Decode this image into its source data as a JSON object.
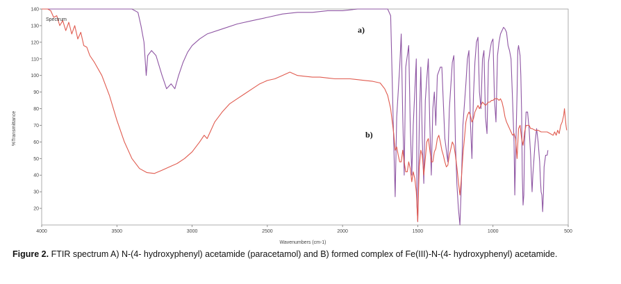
{
  "figure_label": "Figure 2.",
  "caption": "FTIR spectrum A) N-(4- hydroxyphenyl) acetamide (paracetamol) and B) formed complex of Fe(III)-N-(4- hydroxyphenyl) acetamide.",
  "chart_data": {
    "type": "line",
    "xlabel": "Wavenumbers (cm-1)",
    "ylabel": "%Transmittance",
    "xlim": [
      4000,
      500
    ],
    "x_reversed": true,
    "ylim": [
      10,
      140
    ],
    "x_ticks": [
      4000,
      3500,
      3000,
      2500,
      2000,
      1500,
      1000,
      500
    ],
    "y_ticks": [
      20,
      30,
      40,
      50,
      60,
      70,
      80,
      90,
      100,
      110,
      120,
      130,
      140
    ],
    "grid": false,
    "annotation": "Spectrum",
    "series": [
      {
        "name": "a)",
        "color": "#8e55a3",
        "points": [
          [
            4000,
            140
          ],
          [
            3800,
            140
          ],
          [
            3600,
            140
          ],
          [
            3400,
            140
          ],
          [
            3360,
            138
          ],
          [
            3340,
            130
          ],
          [
            3320,
            120
          ],
          [
            3305,
            100
          ],
          [
            3295,
            112
          ],
          [
            3270,
            115
          ],
          [
            3240,
            112
          ],
          [
            3200,
            100
          ],
          [
            3170,
            92
          ],
          [
            3140,
            95
          ],
          [
            3115,
            92
          ],
          [
            3090,
            100
          ],
          [
            3060,
            108
          ],
          [
            3030,
            114
          ],
          [
            3000,
            118
          ],
          [
            2950,
            122
          ],
          [
            2900,
            125
          ],
          [
            2800,
            128
          ],
          [
            2700,
            131
          ],
          [
            2600,
            133
          ],
          [
            2500,
            135
          ],
          [
            2400,
            137
          ],
          [
            2300,
            138
          ],
          [
            2200,
            138
          ],
          [
            2100,
            139
          ],
          [
            2000,
            139
          ],
          [
            1900,
            140
          ],
          [
            1800,
            140
          ],
          [
            1700,
            140
          ],
          [
            1680,
            136
          ],
          [
            1660,
            60
          ],
          [
            1650,
            27
          ],
          [
            1640,
            75
          ],
          [
            1620,
            105
          ],
          [
            1610,
            125
          ],
          [
            1600,
            75
          ],
          [
            1590,
            40
          ],
          [
            1580,
            105
          ],
          [
            1560,
            118
          ],
          [
            1550,
            70
          ],
          [
            1540,
            40
          ],
          [
            1530,
            70
          ],
          [
            1510,
            110
          ],
          [
            1505,
            21
          ],
          [
            1500,
            12
          ],
          [
            1490,
            70
          ],
          [
            1480,
            105
          ],
          [
            1470,
            62
          ],
          [
            1460,
            35
          ],
          [
            1450,
            85
          ],
          [
            1440,
            98
          ],
          [
            1430,
            110
          ],
          [
            1420,
            70
          ],
          [
            1410,
            40
          ],
          [
            1400,
            80
          ],
          [
            1390,
            90
          ],
          [
            1380,
            70
          ],
          [
            1370,
            100
          ],
          [
            1350,
            105
          ],
          [
            1340,
            105
          ],
          [
            1320,
            62
          ],
          [
            1300,
            48
          ],
          [
            1290,
            80
          ],
          [
            1270,
            108
          ],
          [
            1260,
            112
          ],
          [
            1250,
            60
          ],
          [
            1240,
            35
          ],
          [
            1230,
            20
          ],
          [
            1220,
            10
          ],
          [
            1210,
            35
          ],
          [
            1200,
            70
          ],
          [
            1180,
            95
          ],
          [
            1170,
            110
          ],
          [
            1160,
            115
          ],
          [
            1150,
            72
          ],
          [
            1140,
            50
          ],
          [
            1130,
            88
          ],
          [
            1120,
            108
          ],
          [
            1110,
            120
          ],
          [
            1100,
            123
          ],
          [
            1090,
            90
          ],
          [
            1080,
            80
          ],
          [
            1070,
            110
          ],
          [
            1060,
            115
          ],
          [
            1050,
            75
          ],
          [
            1040,
            65
          ],
          [
            1030,
            108
          ],
          [
            1020,
            115
          ],
          [
            1010,
            120
          ],
          [
            1000,
            122
          ],
          [
            990,
            85
          ],
          [
            980,
            72
          ],
          [
            970,
            112
          ],
          [
            960,
            120
          ],
          [
            950,
            125
          ],
          [
            940,
            127
          ],
          [
            930,
            129
          ],
          [
            920,
            128
          ],
          [
            910,
            126
          ],
          [
            900,
            118
          ],
          [
            890,
            115
          ],
          [
            880,
            110
          ],
          [
            870,
            85
          ],
          [
            860,
            60
          ],
          [
            855,
            28
          ],
          [
            850,
            50
          ],
          [
            840,
            90
          ],
          [
            835,
            115
          ],
          [
            830,
            118
          ],
          [
            820,
            112
          ],
          [
            815,
            100
          ],
          [
            810,
            78
          ],
          [
            805,
            40
          ],
          [
            800,
            22
          ],
          [
            795,
            28
          ],
          [
            790,
            60
          ],
          [
            780,
            78
          ],
          [
            770,
            78
          ],
          [
            760,
            68
          ],
          [
            750,
            52
          ],
          [
            745,
            40
          ],
          [
            740,
            30
          ],
          [
            735,
            40
          ],
          [
            720,
            60
          ],
          [
            710,
            68
          ],
          [
            700,
            60
          ],
          [
            690,
            48
          ],
          [
            685,
            38
          ],
          [
            680,
            30
          ],
          [
            675,
            28
          ],
          [
            670,
            18
          ],
          [
            665,
            28
          ],
          [
            660,
            45
          ],
          [
            650,
            52
          ],
          [
            640,
            52
          ],
          [
            635,
            55
          ]
        ]
      },
      {
        "name": "b)",
        "color": "#e05a4e",
        "points": [
          [
            4000,
            140
          ],
          [
            3960,
            140
          ],
          [
            3940,
            139
          ],
          [
            3920,
            135
          ],
          [
            3900,
            136
          ],
          [
            3880,
            130
          ],
          [
            3860,
            133
          ],
          [
            3840,
            127
          ],
          [
            3820,
            132
          ],
          [
            3800,
            125
          ],
          [
            3780,
            130
          ],
          [
            3760,
            122
          ],
          [
            3740,
            126
          ],
          [
            3720,
            118
          ],
          [
            3700,
            117
          ],
          [
            3680,
            112
          ],
          [
            3650,
            108
          ],
          [
            3600,
            100
          ],
          [
            3550,
            88
          ],
          [
            3500,
            73
          ],
          [
            3450,
            60
          ],
          [
            3400,
            50
          ],
          [
            3350,
            44
          ],
          [
            3300,
            41.5
          ],
          [
            3250,
            41
          ],
          [
            3200,
            43
          ],
          [
            3150,
            45
          ],
          [
            3100,
            47
          ],
          [
            3050,
            50
          ],
          [
            3000,
            54
          ],
          [
            2950,
            60
          ],
          [
            2920,
            64
          ],
          [
            2900,
            62
          ],
          [
            2880,
            66
          ],
          [
            2850,
            72
          ],
          [
            2800,
            78
          ],
          [
            2750,
            83
          ],
          [
            2700,
            86
          ],
          [
            2650,
            89
          ],
          [
            2600,
            92
          ],
          [
            2550,
            95
          ],
          [
            2500,
            97
          ],
          [
            2450,
            98
          ],
          [
            2400,
            100
          ],
          [
            2350,
            102
          ],
          [
            2300,
            100
          ],
          [
            2250,
            99.5
          ],
          [
            2200,
            99
          ],
          [
            2150,
            99
          ],
          [
            2100,
            98.5
          ],
          [
            2050,
            98
          ],
          [
            2000,
            98
          ],
          [
            1950,
            98
          ],
          [
            1900,
            97.5
          ],
          [
            1850,
            97
          ],
          [
            1800,
            96.5
          ],
          [
            1750,
            95.5
          ],
          [
            1720,
            92
          ],
          [
            1700,
            88
          ],
          [
            1680,
            80
          ],
          [
            1660,
            65
          ],
          [
            1650,
            55
          ],
          [
            1640,
            57
          ],
          [
            1630,
            52
          ],
          [
            1620,
            48
          ],
          [
            1610,
            48
          ],
          [
            1600,
            55
          ],
          [
            1590,
            48
          ],
          [
            1580,
            42
          ],
          [
            1570,
            42
          ],
          [
            1560,
            48
          ],
          [
            1550,
            44
          ],
          [
            1540,
            36
          ],
          [
            1530,
            42
          ],
          [
            1520,
            38
          ],
          [
            1510,
            30
          ],
          [
            1505,
            22
          ],
          [
            1500,
            12
          ],
          [
            1495,
            30
          ],
          [
            1490,
            45
          ],
          [
            1480,
            55
          ],
          [
            1470,
            52
          ],
          [
            1460,
            40
          ],
          [
            1450,
            50
          ],
          [
            1440,
            60
          ],
          [
            1430,
            62
          ],
          [
            1420,
            55
          ],
          [
            1410,
            48
          ],
          [
            1400,
            48
          ],
          [
            1390,
            54
          ],
          [
            1380,
            56
          ],
          [
            1370,
            62
          ],
          [
            1360,
            64
          ],
          [
            1350,
            60
          ],
          [
            1340,
            55
          ],
          [
            1330,
            52
          ],
          [
            1320,
            48
          ],
          [
            1310,
            45
          ],
          [
            1300,
            46
          ],
          [
            1290,
            52
          ],
          [
            1280,
            56
          ],
          [
            1270,
            60
          ],
          [
            1260,
            58
          ],
          [
            1250,
            52
          ],
          [
            1240,
            45
          ],
          [
            1230,
            36
          ],
          [
            1220,
            28
          ],
          [
            1210,
            38
          ],
          [
            1200,
            52
          ],
          [
            1190,
            62
          ],
          [
            1180,
            72
          ],
          [
            1170,
            76
          ],
          [
            1160,
            78
          ],
          [
            1150,
            76
          ],
          [
            1140,
            72
          ],
          [
            1130,
            74
          ],
          [
            1120,
            78
          ],
          [
            1110,
            80
          ],
          [
            1100,
            82
          ],
          [
            1090,
            80
          ],
          [
            1080,
            82
          ],
          [
            1070,
            84
          ],
          [
            1060,
            83
          ],
          [
            1050,
            82
          ],
          [
            1040,
            83
          ],
          [
            1030,
            84
          ],
          [
            1020,
            84
          ],
          [
            1010,
            85
          ],
          [
            1000,
            85
          ],
          [
            990,
            86
          ],
          [
            980,
            86
          ],
          [
            970,
            86
          ],
          [
            960,
            85
          ],
          [
            950,
            86
          ],
          [
            940,
            84
          ],
          [
            930,
            80
          ],
          [
            920,
            75
          ],
          [
            910,
            72
          ],
          [
            900,
            70
          ],
          [
            890,
            68
          ],
          [
            880,
            66
          ],
          [
            870,
            64
          ],
          [
            860,
            65
          ],
          [
            850,
            62
          ],
          [
            840,
            50
          ],
          [
            830,
            68
          ],
          [
            820,
            70
          ],
          [
            810,
            62
          ],
          [
            800,
            58
          ],
          [
            790,
            66
          ],
          [
            780,
            70
          ],
          [
            770,
            70
          ],
          [
            760,
            70
          ],
          [
            750,
            68
          ],
          [
            740,
            68
          ],
          [
            720,
            67
          ],
          [
            700,
            67
          ],
          [
            680,
            66
          ],
          [
            660,
            66
          ],
          [
            640,
            66
          ],
          [
            620,
            65
          ],
          [
            600,
            64
          ],
          [
            590,
            66
          ],
          [
            580,
            64
          ],
          [
            570,
            67
          ],
          [
            560,
            65
          ],
          [
            550,
            70
          ],
          [
            540,
            72
          ],
          [
            530,
            76
          ],
          [
            525,
            80
          ],
          [
            520,
            75
          ],
          [
            515,
            70
          ],
          [
            510,
            67
          ]
        ]
      }
    ]
  }
}
